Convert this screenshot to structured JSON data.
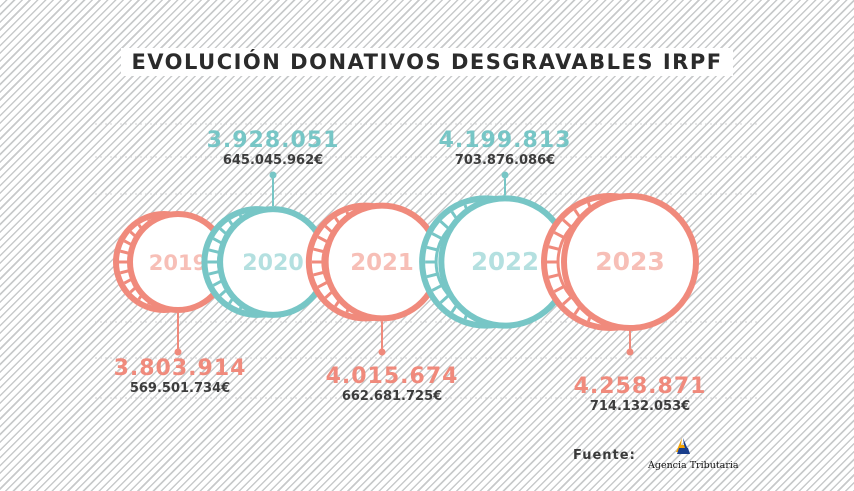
{
  "title": "EVOLUCIÓN DONATIVOS DESGRAVABLES IRPF",
  "source_label": "Fuente:",
  "logo_text": "Agencia Tributaria",
  "colors": {
    "salmon": "#f08a7c",
    "teal": "#77c6c6",
    "text_dark": "#3c3c3c"
  },
  "chart_data": {
    "type": "bar",
    "categories": [
      "2019",
      "2020",
      "2021",
      "2022",
      "2023"
    ],
    "series": [
      {
        "name": "",
        "values": [
          3803914,
          3928051,
          4015674,
          4199813,
          4258871
        ]
      },
      {
        "name": "",
        "values": [
          569501734,
          645045962,
          662681725,
          703876086,
          714132053
        ]
      }
    ],
    "labels": {
      "counts": [
        "3.803.914",
        "3.928.051",
        "4.015.674",
        "4.199.813",
        "4.258.871"
      ],
      "amounts": [
        "569.501.734€",
        "645.045.962€",
        "662.681.725€",
        "703.876.086€",
        "714.132.053€"
      ]
    },
    "series_colors": [
      "salmon",
      "teal",
      "salmon",
      "teal",
      "salmon"
    ],
    "label_positions": [
      "bottom",
      "top",
      "bottom",
      "top",
      "bottom"
    ]
  }
}
